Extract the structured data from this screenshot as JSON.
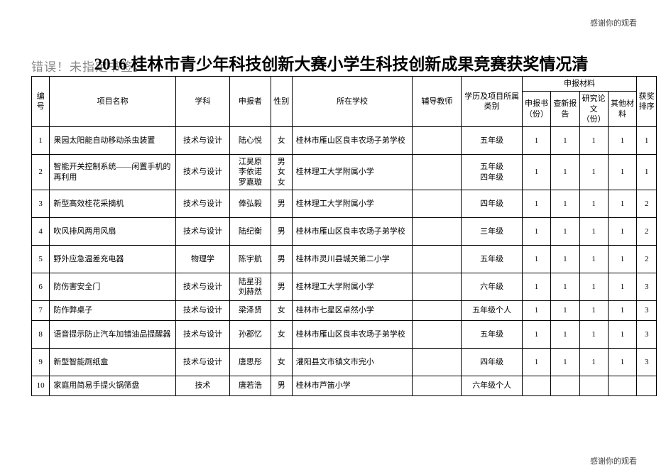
{
  "note_top": "感谢你的观看",
  "note_bottom": "感谢你的观看",
  "error_text": "错误！未指定书签。",
  "title": "2016 桂林市青少年科技创新大赛小学生科技创新成果竞赛获奖情况清",
  "headers": {
    "num": "编号",
    "name": "项目名称",
    "subject": "学科",
    "applicant": "申报者",
    "sex": "性别",
    "school": "所在学校",
    "tutor": "辅导教师",
    "grade": "学历及项目所属类别",
    "materials_group": "申报材料",
    "m1": "申报书（份）",
    "m2": "查新报告",
    "m3": "研究论文（份）",
    "m4": "其他材料",
    "rank": "获奖排序"
  },
  "rows": [
    {
      "num": "1",
      "name": "果园太阳能自动移动杀虫装置",
      "subject": "技术与设计",
      "applicant": "陆心悦",
      "sex": "女",
      "school": "桂林市雁山区良丰农场子弟学校",
      "tutor": "",
      "grade": "五年级",
      "m1": "1",
      "m2": "1",
      "m3": "1",
      "m4": "1",
      "rank": "1",
      "short": false
    },
    {
      "num": "2",
      "name": "智能开关控制系统——闲置手机的再利用",
      "subject": "技术与设计",
      "applicant": "江昊原\n李依诺\n罗嘉璇",
      "sex": "男\n女\n女",
      "school": "桂林理工大学附属小学",
      "tutor": "",
      "grade": "五年级\n四年级",
      "m1": "1",
      "m2": "1",
      "m3": "1",
      "m4": "1",
      "rank": "1",
      "short": false
    },
    {
      "num": "3",
      "name": "新型高效桂花采摘机",
      "subject": "技术与设计",
      "applicant": "俸弘毅",
      "sex": "男",
      "school": "桂林理工大学附属小学",
      "tutor": "",
      "grade": "四年级",
      "m1": "1",
      "m2": "1",
      "m3": "1",
      "m4": "1",
      "rank": "2",
      "short": false
    },
    {
      "num": "4",
      "name": "吹风排风两用风扇",
      "subject": "技术与设计",
      "applicant": "陆纪衡",
      "sex": "男",
      "school": "桂林市雁山区良丰农场子弟学校",
      "tutor": "",
      "grade": "三年级",
      "m1": "1",
      "m2": "1",
      "m3": "1",
      "m4": "1",
      "rank": "2",
      "short": false
    },
    {
      "num": "5",
      "name": "野外应急温差充电器",
      "subject": "物理学",
      "applicant": "陈宇航",
      "sex": "男",
      "school": "桂林市灵川县城关第二小学",
      "tutor": "",
      "grade": "五年级",
      "m1": "1",
      "m2": "1",
      "m3": "1",
      "m4": "1",
      "rank": "2",
      "short": false
    },
    {
      "num": "6",
      "name": "防伤害安全门",
      "subject": "技术与设计",
      "applicant": "陆星羽\n刘赫然",
      "sex": "男",
      "school": "桂林理工大学附属小学",
      "tutor": "",
      "grade": "六年级",
      "m1": "1",
      "m2": "1",
      "m3": "1",
      "m4": "1",
      "rank": "3",
      "short": false
    },
    {
      "num": "7",
      "name": "防作弊桌子",
      "subject": "技术与设计",
      "applicant": "梁泽贤",
      "sex": "女",
      "school": "桂林市七星区卓然小学",
      "tutor": "",
      "grade": "五年级个人",
      "m1": "1",
      "m2": "1",
      "m3": "1",
      "m4": "1",
      "rank": "3",
      "short": true
    },
    {
      "num": "8",
      "name": "语音提示防止汽车加错油品提醒器",
      "subject": "技术与设计",
      "applicant": "孙郡忆",
      "sex": "女",
      "school": "桂林市雁山区良丰农场子弟学校",
      "tutor": "",
      "grade": "五年级",
      "m1": "1",
      "m2": "1",
      "m3": "1",
      "m4": "1",
      "rank": "3",
      "short": false
    },
    {
      "num": "9",
      "name": "新型智能厕纸盒",
      "subject": "技术与设计",
      "applicant": "唐思彤",
      "sex": "女",
      "school": "灌阳县文市镇文市完小",
      "tutor": "",
      "grade": "四年级",
      "m1": "1",
      "m2": "1",
      "m3": "1",
      "m4": "1",
      "rank": "3",
      "short": false
    },
    {
      "num": "10",
      "name": "家庭用简易手提火锅筛盘",
      "subject": "技术",
      "applicant": "唐若浩",
      "sex": "男",
      "school": "桂林市芦笛小学",
      "tutor": "",
      "grade": "六年级个人",
      "m1": "",
      "m2": "",
      "m3": "",
      "m4": "",
      "rank": "",
      "short": true
    }
  ]
}
